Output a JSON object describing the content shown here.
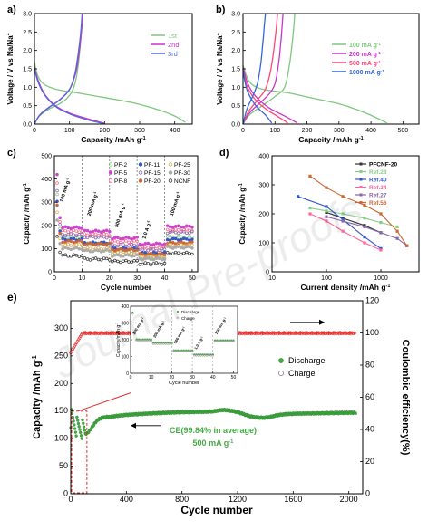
{
  "chart_data": [
    {
      "panel": "a)",
      "type": "line",
      "xlabel": "Capacity /mAh g",
      "xlabel_sup": "-1",
      "ylabel": "Voltage / V vs Na/Na",
      "ylabel_sup": "+",
      "xlim": [
        0,
        450
      ],
      "ylim": [
        0,
        3.0
      ],
      "xticks": [
        "0",
        "100",
        "200",
        "300",
        "400"
      ],
      "yticks": [
        "0.0",
        "0.5",
        "1.0",
        "1.5",
        "2.0",
        "2.5",
        "3.0"
      ],
      "legend_position": "top-right",
      "series": [
        {
          "name": "1st",
          "color": "#7ec87e",
          "discharge": [
            [
              0,
              1.7
            ],
            [
              8,
              1.35
            ],
            [
              25,
              1.1
            ],
            [
              60,
              0.95
            ],
            [
              120,
              0.85
            ],
            [
              200,
              0.72
            ],
            [
              280,
              0.58
            ],
            [
              350,
              0.4
            ],
            [
              400,
              0.22
            ],
            [
              430,
              0.05
            ]
          ],
          "charge": [
            [
              0,
              0.0
            ],
            [
              12,
              0.2
            ],
            [
              40,
              0.4
            ],
            [
              80,
              0.6
            ],
            [
              105,
              0.85
            ],
            [
              118,
              1.2
            ],
            [
              126,
              1.7
            ],
            [
              132,
              2.3
            ],
            [
              136,
              3.0
            ]
          ]
        },
        {
          "name": "2nd",
          "color": "#cc33cc",
          "discharge": [
            [
              0,
              1.55
            ],
            [
              10,
              1.2
            ],
            [
              30,
              0.8
            ],
            [
              60,
              0.5
            ],
            [
              100,
              0.3
            ],
            [
              150,
              0.15
            ],
            [
              200,
              0.02
            ]
          ],
          "charge": [
            [
              0,
              0.0
            ],
            [
              15,
              0.25
            ],
            [
              40,
              0.45
            ],
            [
              70,
              0.65
            ],
            [
              100,
              0.95
            ],
            [
              118,
              1.4
            ],
            [
              128,
              2.0
            ],
            [
              134,
              2.5
            ],
            [
              138,
              3.0
            ]
          ]
        },
        {
          "name": "3rd",
          "color": "#5566dd",
          "discharge": [
            [
              0,
              1.5
            ],
            [
              10,
              1.15
            ],
            [
              30,
              0.78
            ],
            [
              60,
              0.48
            ],
            [
              100,
              0.28
            ],
            [
              150,
              0.12
            ],
            [
              195,
              0.02
            ]
          ],
          "charge": [
            [
              0,
              0.0
            ],
            [
              15,
              0.24
            ],
            [
              40,
              0.44
            ],
            [
              70,
              0.64
            ],
            [
              100,
              0.94
            ],
            [
              116,
              1.4
            ],
            [
              126,
              2.0
            ],
            [
              132,
              2.5
            ],
            [
              136,
              3.0
            ]
          ]
        }
      ]
    },
    {
      "panel": "b)",
      "type": "line",
      "xlabel": "Capacity /mAh g",
      "xlabel_sup": "-1",
      "ylabel": "Voltage / V vs Na/Na",
      "ylabel_sup": "+",
      "xlim": [
        0,
        550
      ],
      "ylim": [
        0,
        3.0
      ],
      "xticks": [
        "0",
        "100",
        "200",
        "300",
        "400",
        "500"
      ],
      "yticks": [
        "0.0",
        "0.5",
        "1.0",
        "1.5",
        "2.0",
        "2.5",
        "3.0"
      ],
      "legend_position": "right",
      "series": [
        {
          "name": "100 mA g",
          "sup": "-1",
          "color": "#7ec87e",
          "discharge": [
            [
              0,
              1.6
            ],
            [
              20,
              1.15
            ],
            [
              60,
              0.95
            ],
            [
              140,
              0.85
            ],
            [
              220,
              0.7
            ],
            [
              300,
              0.55
            ],
            [
              360,
              0.38
            ],
            [
              410,
              0.2
            ],
            [
              450,
              0.03
            ]
          ],
          "charge": [
            [
              0,
              0.0
            ],
            [
              20,
              0.25
            ],
            [
              60,
              0.5
            ],
            [
              100,
              0.75
            ],
            [
              130,
              1.0
            ],
            [
              145,
              1.6
            ],
            [
              155,
              2.3
            ],
            [
              162,
              3.0
            ]
          ]
        },
        {
          "name": "200 mA g",
          "sup": "-1",
          "color": "#cc33cc",
          "discharge": [
            [
              0,
              1.55
            ],
            [
              15,
              1.1
            ],
            [
              40,
              0.75
            ],
            [
              80,
              0.45
            ],
            [
              130,
              0.22
            ],
            [
              170,
              0.03
            ]
          ],
          "charge": [
            [
              0,
              0.0
            ],
            [
              20,
              0.3
            ],
            [
              50,
              0.55
            ],
            [
              80,
              0.8
            ],
            [
              100,
              1.1
            ],
            [
              112,
              1.7
            ],
            [
              120,
              2.4
            ],
            [
              125,
              3.0
            ]
          ]
        },
        {
          "name": "500 mA g",
          "sup": "-1",
          "color": "#ff4477",
          "discharge": [
            [
              0,
              1.5
            ],
            [
              12,
              1.05
            ],
            [
              35,
              0.7
            ],
            [
              70,
              0.42
            ],
            [
              110,
              0.2
            ],
            [
              140,
              0.03
            ]
          ],
          "charge": [
            [
              0,
              0.0
            ],
            [
              18,
              0.35
            ],
            [
              45,
              0.65
            ],
            [
              70,
              0.95
            ],
            [
              85,
              1.4
            ],
            [
              96,
              2.0
            ],
            [
              104,
              2.6
            ],
            [
              108,
              3.0
            ]
          ]
        },
        {
          "name": "1000 mA g",
          "sup": "-1",
          "color": "#3366dd",
          "discharge": [
            [
              0,
              1.45
            ],
            [
              10,
              1.0
            ],
            [
              25,
              0.7
            ],
            [
              45,
              0.45
            ],
            [
              70,
              0.25
            ],
            [
              90,
              0.03
            ]
          ],
          "charge": [
            [
              0,
              0.0
            ],
            [
              12,
              0.4
            ],
            [
              30,
              0.75
            ],
            [
              45,
              1.1
            ],
            [
              55,
              1.6
            ],
            [
              62,
              2.2
            ],
            [
              67,
              2.7
            ],
            [
              70,
              3.0
            ]
          ]
        }
      ]
    },
    {
      "panel": "c)",
      "type": "scatter",
      "xlabel": "Cycle number",
      "ylabel": "Capacity /mAh g",
      "ylabel_sup": "-1",
      "xlim": [
        0,
        52
      ],
      "ylim": [
        0,
        500
      ],
      "xticks": [
        "0",
        "10",
        "20",
        "30",
        "40",
        "50"
      ],
      "yticks": [
        "0",
        "100",
        "200",
        "300",
        "400",
        "500"
      ],
      "stage_lines": [
        10,
        20,
        30,
        40
      ],
      "stage_labels": [
        {
          "text": "100 mA g",
          "sup": "-1",
          "x": 3,
          "y": 300
        },
        {
          "text": "200 mA g",
          "sup": "-1",
          "x": 13,
          "y": 240
        },
        {
          "text": "500 mA g",
          "sup": "-1",
          "x": 23,
          "y": 190
        },
        {
          "text": "1.0 A g",
          "sup": "-1",
          "x": 33,
          "y": 140
        },
        {
          "text": "100 mA g",
          "sup": "-1",
          "x": 43,
          "y": 240
        }
      ],
      "series": [
        {
          "name": "PF-2",
          "color": "#88cc88",
          "stages": [
            150,
            120,
            90,
            60,
            150
          ]
        },
        {
          "name": "PF-5",
          "color": "#cc44cc",
          "stages": [
            190,
            175,
            145,
            120,
            195
          ]
        },
        {
          "name": "PF-8",
          "color": "#ff6688",
          "stages": [
            175,
            160,
            130,
            105,
            180
          ]
        },
        {
          "name": "PF-11",
          "color": "#3355cc",
          "stages": [
            140,
            125,
            100,
            80,
            140
          ]
        },
        {
          "name": "PF-15",
          "color": "#8866aa",
          "stages": [
            160,
            150,
            115,
            95,
            170
          ]
        },
        {
          "name": "PF-20",
          "color": "#cc6633",
          "stages": [
            130,
            120,
            95,
            75,
            125
          ]
        },
        {
          "name": "PF-25",
          "color": "#ddaa55",
          "stages": [
            115,
            100,
            80,
            65,
            115
          ]
        },
        {
          "name": "PF-30",
          "color": "#aaaaaa",
          "stages": [
            100,
            90,
            70,
            55,
            105
          ]
        },
        {
          "name": "NCNF",
          "color": "#333333",
          "stages": [
            70,
            55,
            45,
            35,
            80
          ]
        }
      ]
    },
    {
      "panel": "d)",
      "type": "line",
      "xlabel": "Current density /mAh g",
      "xlabel_sup": "-1",
      "ylabel": "Capacity /mAh g",
      "ylabel_sup": "-1",
      "xscale": "log",
      "xlim": [
        10,
        5000
      ],
      "ylim": [
        0,
        400
      ],
      "xticks": [
        "10",
        "100",
        "1000"
      ],
      "yticks": [
        "0",
        "100",
        "200",
        "300",
        "400"
      ],
      "legend_position": "top-right",
      "series": [
        {
          "name": "PFCNF-20",
          "color": "#333333",
          "points": [
            [
              100,
              205
            ],
            [
              200,
              185
            ],
            [
              500,
              160
            ],
            [
              1000,
              135
            ]
          ]
        },
        {
          "name": "Ref.28",
          "color": "#88cc88",
          "points": [
            [
              50,
              220
            ],
            [
              100,
              210
            ],
            [
              200,
              200
            ],
            [
              500,
              185
            ],
            [
              1000,
              170
            ],
            [
              2000,
              155
            ]
          ]
        },
        {
          "name": "Ref.40",
          "color": "#3355cc",
          "points": [
            [
              30,
              260
            ],
            [
              100,
              225
            ],
            [
              200,
              180
            ],
            [
              500,
              120
            ],
            [
              1000,
              80
            ]
          ]
        },
        {
          "name": "Ref.34",
          "color": "#ff6699",
          "points": [
            [
              50,
              200
            ],
            [
              100,
              175
            ],
            [
              200,
              140
            ],
            [
              500,
              100
            ],
            [
              1000,
              75
            ]
          ]
        },
        {
          "name": "Ref.27",
          "color": "#8866aa",
          "points": [
            [
              100,
              190
            ],
            [
              200,
              175
            ],
            [
              500,
              155
            ],
            [
              1000,
              135
            ],
            [
              2000,
              115
            ],
            [
              3000,
              90
            ]
          ]
        },
        {
          "name": "Ref.56",
          "color": "#cc6633",
          "points": [
            [
              50,
              330
            ],
            [
              100,
              290
            ],
            [
              200,
              260
            ],
            [
              500,
              230
            ],
            [
              1000,
              200
            ],
            [
              2000,
              140
            ],
            [
              3000,
              90
            ]
          ]
        }
      ]
    },
    {
      "panel": "e)",
      "type": "scatter",
      "xlabel": "Cycle number",
      "ylabel": "Capacity /mAh g",
      "ylabel_sup": "-1",
      "y2label": "Coulombic efficiency(%)",
      "xlim": [
        0,
        2100
      ],
      "ylim": [
        0,
        350
      ],
      "y2lim": [
        0,
        120
      ],
      "xticks": [
        "0",
        "400",
        "800",
        "1200",
        "1600",
        "2000"
      ],
      "yticks": [
        "0",
        "50",
        "100",
        "150",
        "200",
        "250",
        "300"
      ],
      "y2ticks": [
        "0",
        "20",
        "40",
        "60",
        "80",
        "100",
        "120"
      ],
      "annotation_ce": "CE(99.84% in average)",
      "annotation_rate": "500 mA g",
      "annotation_rate_sup": "-1",
      "legend_position": "right",
      "series": [
        {
          "name": "Discharge",
          "color": "#44aa44",
          "marker": "filled-circle"
        },
        {
          "name": "Charge",
          "color": "#888888",
          "marker": "open-circle"
        }
      ],
      "discharge_profile": [
        [
          0,
          135
        ],
        [
          40,
          120
        ],
        [
          80,
          115
        ],
        [
          120,
          110
        ],
        [
          200,
          135
        ],
        [
          300,
          140
        ],
        [
          400,
          143
        ],
        [
          600,
          146
        ],
        [
          800,
          148
        ],
        [
          1000,
          149
        ],
        [
          1100,
          152
        ],
        [
          1200,
          148
        ],
        [
          1300,
          140
        ],
        [
          1400,
          138
        ],
        [
          1500,
          143
        ],
        [
          1600,
          145
        ],
        [
          1800,
          146
        ],
        [
          2000,
          147
        ],
        [
          2050,
          147
        ]
      ],
      "ce_value": 99.84,
      "inset": {
        "xlabel": "Cycle number",
        "ylabel": "Capacity/mAh g",
        "ylabel_sup": "-1",
        "xlim": [
          0,
          52
        ],
        "ylim": [
          0,
          400
        ],
        "xticks": [
          "0",
          "10",
          "20",
          "30",
          "40",
          "50"
        ],
        "yticks": [
          "0",
          "100",
          "200",
          "300",
          "400"
        ],
        "legend": [
          "Discharge",
          "Charge"
        ],
        "stage_labels": [
          {
            "text": "100 mA g",
            "sup": "-1",
            "x": 2,
            "y": 230
          },
          {
            "text": "200 mA g",
            "sup": "-1",
            "x": 12,
            "y": 210
          },
          {
            "text": "500 mA g",
            "sup": "-1",
            "x": 22,
            "y": 175
          },
          {
            "text": "1.0 A g",
            "sup": "-1",
            "x": 32,
            "y": 140
          },
          {
            "text": "100 mA g",
            "sup": "-1",
            "x": 42,
            "y": 230
          }
        ],
        "stages": [
          200,
          180,
          135,
          110,
          195
        ]
      }
    }
  ],
  "watermark": "Journal Pre-proofs"
}
